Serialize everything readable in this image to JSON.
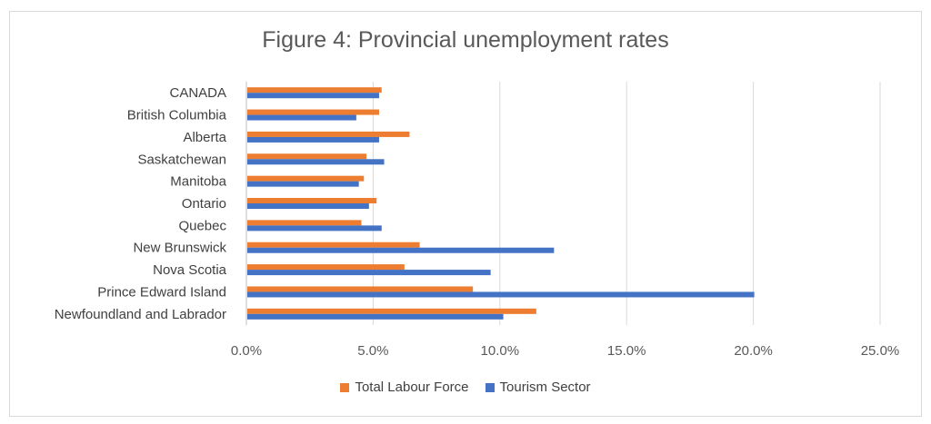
{
  "chart_data": {
    "type": "bar",
    "orientation": "horizontal",
    "title": "Figure 4: Provincial unemployment rates",
    "categories": [
      "CANADA",
      "British Columbia",
      "Alberta",
      "Saskatchewan",
      "Manitoba",
      "Ontario",
      "Quebec",
      "New Brunswick",
      "Nova Scotia",
      "Prince Edward Island",
      "Newfoundland and Labrador"
    ],
    "series": [
      {
        "name": "Total Labour Force",
        "color": "#ED7D31",
        "values": [
          5.3,
          5.2,
          6.4,
          4.7,
          4.6,
          5.1,
          4.5,
          6.8,
          6.2,
          8.9,
          11.4
        ]
      },
      {
        "name": "Tourism Sector",
        "color": "#4472C4",
        "values": [
          5.2,
          4.3,
          5.2,
          5.4,
          4.4,
          4.8,
          5.3,
          12.1,
          9.6,
          20.0,
          10.1
        ]
      }
    ],
    "xlim": [
      0,
      25
    ],
    "xticks": [
      "0.0%",
      "5.0%",
      "10.0%",
      "15.0%",
      "20.0%",
      "25.0%"
    ],
    "grid": true,
    "legend_position": "bottom"
  }
}
